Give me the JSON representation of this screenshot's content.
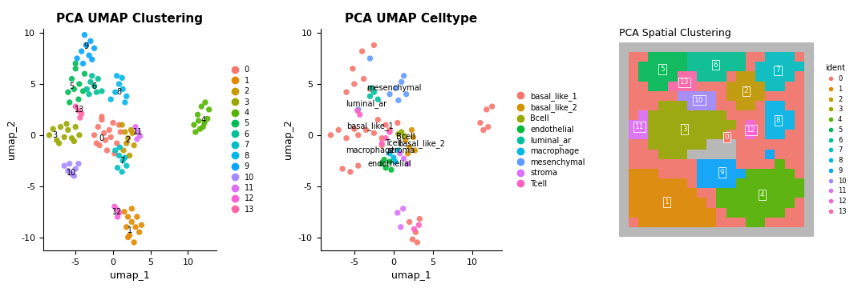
{
  "chart_data": [
    {
      "type": "scatter",
      "title": "PCA UMAP Clustering",
      "x_label": "umap_1",
      "y_label": "umap_2",
      "xlim": [
        -9.3,
        13.8
      ],
      "ylim": [
        -11.3,
        10.4
      ],
      "xticks": [
        -5,
        0,
        5,
        10
      ],
      "yticks": [
        -10,
        -5,
        0,
        5,
        10
      ],
      "legend": "right",
      "series": [
        {
          "name": "0",
          "color": "#F8766D",
          "x": [
            -2.5,
            -2,
            -1.5,
            -1,
            -0.5,
            0,
            0.5,
            1,
            -1.8,
            -0.8,
            0.2,
            -1.2,
            -0.3,
            0.8,
            -2.2,
            -1.5
          ],
          "y": [
            0,
            0.8,
            1.5,
            -0.5,
            0.5,
            1.2,
            -0.8,
            0.3,
            -1.0,
            -1.5,
            -1.8,
            0.2,
            -0.2,
            1.0,
            -0.8,
            1.8
          ]
        },
        {
          "name": "1",
          "color": "#E38900",
          "x": [
            1.5,
            2,
            2.5,
            3,
            3.5,
            2,
            2.8,
            3.2,
            1.8,
            2.5,
            3.8,
            2.2
          ],
          "y": [
            -7.5,
            -8,
            -8.5,
            -9,
            -9.5,
            -10,
            -10.5,
            -8,
            -9,
            -7.2,
            -8.8,
            -9.8
          ]
        },
        {
          "name": "2",
          "color": "#C49A00",
          "x": [
            1.2,
            1.6,
            2,
            2.4,
            2.8,
            1.4,
            2.2,
            2.6,
            1.8
          ],
          "y": [
            1.0,
            0.3,
            -0.3,
            0.5,
            -1.0,
            -1.5,
            -2.0,
            0.2,
            -0.8
          ]
        },
        {
          "name": "3",
          "color": "#99A800",
          "x": [
            -8.5,
            -8,
            -7.5,
            -7,
            -6.5,
            -6,
            -5.5,
            -5,
            -4.5,
            -7.2,
            -6.2,
            -5.2
          ],
          "y": [
            0,
            0.6,
            -0.5,
            0.8,
            -0.2,
            0.5,
            -0.3,
            0.8,
            0,
            -0.8,
            1.1,
            -0.6
          ]
        },
        {
          "name": "4",
          "color": "#53B400",
          "x": [
            10.8,
            11.3,
            11.8,
            12.3,
            12.8,
            11,
            11.6,
            12.2,
            12.6,
            11.4,
            12
          ],
          "y": [
            1,
            2,
            2.8,
            3.2,
            2.5,
            0.3,
            0.6,
            1.2,
            1.6,
            1.4,
            0.8
          ]
        },
        {
          "name": "5",
          "color": "#00BC56",
          "x": [
            -6,
            -5.5,
            -5,
            -4.5,
            -4,
            -5.8,
            -5.2,
            -4.6,
            -3.8,
            -5
          ],
          "y": [
            4.2,
            5.5,
            6.5,
            5,
            4.3,
            3.2,
            4.5,
            3.5,
            6,
            7
          ]
        },
        {
          "name": "6",
          "color": "#00C094",
          "x": [
            -3.5,
            -3,
            -2.5,
            -2,
            -1.5,
            -3.2,
            -2.2,
            -2.8
          ],
          "y": [
            4.5,
            5.2,
            4.8,
            5.5,
            4.3,
            4,
            4.2,
            5.8
          ]
        },
        {
          "name": "7",
          "color": "#00BFC4",
          "x": [
            0.3,
            0.8,
            1.3,
            1.8,
            0.6,
            1.2,
            1.6,
            0.9
          ],
          "y": [
            -1.5,
            -2.0,
            -2.5,
            -3.0,
            -3.2,
            -3.6,
            -2.2,
            -1.2
          ]
        },
        {
          "name": "8",
          "color": "#00B6EB",
          "x": [
            -0.3,
            0.3,
            0.8,
            1.3,
            1.8,
            0.5,
            1.2,
            1.6
          ],
          "y": [
            3.5,
            4.2,
            5.0,
            4.5,
            3.8,
            5.8,
            5.6,
            3.2
          ]
        },
        {
          "name": "9",
          "color": "#06A4FF",
          "x": [
            -4.8,
            -4.2,
            -3.6,
            -3,
            -2.5,
            -4,
            -3.2,
            -3.8,
            -2.8
          ],
          "y": [
            7.5,
            8.2,
            8.8,
            9.2,
            8.5,
            7,
            7.8,
            9.8,
            7.4
          ]
        },
        {
          "name": "10",
          "color": "#A58AFF",
          "x": [
            -6.5,
            -6,
            -5.5,
            -5,
            -4.6,
            -5.8,
            -5.2
          ],
          "y": [
            -3,
            -3.5,
            -3.8,
            -3.3,
            -2.8,
            -2.8,
            -4
          ]
        },
        {
          "name": "11",
          "color": "#DF70F8",
          "x": [
            3,
            3.3,
            3.6,
            3.2
          ],
          "y": [
            0.8,
            0.3,
            -0.1,
            -0.4
          ]
        },
        {
          "name": "12",
          "color": "#FB61D7",
          "x": [
            0.2,
            0.5,
            0.8,
            0.6
          ],
          "y": [
            -7,
            -7.3,
            -7.6,
            -8
          ]
        },
        {
          "name": "13",
          "color": "#FF66A8",
          "x": [
            -5,
            -4.6,
            -4.2,
            -4.4
          ],
          "y": [
            2.8,
            2.4,
            2.1,
            1.7
          ]
        }
      ],
      "annotations": [
        {
          "text": "0",
          "x": -1.5,
          "y": -0.3
        },
        {
          "text": "1",
          "x": 2.3,
          "y": -9.3
        },
        {
          "text": "2",
          "x": 2.0,
          "y": -0.5
        },
        {
          "text": "3",
          "x": -7.8,
          "y": 0.0
        },
        {
          "text": "4",
          "x": 12.0,
          "y": 1.5
        },
        {
          "text": "5",
          "x": -5.5,
          "y": 4.8
        },
        {
          "text": "6",
          "x": -2.5,
          "y": 4.8
        },
        {
          "text": "7",
          "x": 1.2,
          "y": -2.5
        },
        {
          "text": "8",
          "x": 0.8,
          "y": 4.2
        },
        {
          "text": "9",
          "x": -3.6,
          "y": 8.7
        },
        {
          "text": "10",
          "x": -5.5,
          "y": -3.7
        },
        {
          "text": "11",
          "x": 3.3,
          "y": 0.3
        },
        {
          "text": "12",
          "x": 0.6,
          "y": -7.5
        },
        {
          "text": "13",
          "x": -4.5,
          "y": 2.5
        }
      ]
    },
    {
      "type": "scatter",
      "title": "PCA UMAP Celltype",
      "x_label": "umap_1",
      "y_label": "umap_2",
      "xlim": [
        -9.3,
        13.8
      ],
      "ylim": [
        -11.3,
        10.4
      ],
      "xticks": [
        -5,
        0,
        5,
        10
      ],
      "yticks": [
        -10,
        -5,
        0,
        5,
        10
      ],
      "legend": "right",
      "series": [
        {
          "name": "basal_like_1",
          "color": "#F8766D",
          "x": [
            -8,
            -7,
            -6,
            -5,
            -4.5,
            -3.5,
            -2.5,
            -1.5,
            -0.5,
            -6.5,
            -5.5,
            -4.5,
            -5,
            -3.8,
            -3,
            -4,
            -2.5,
            11,
            11.8,
            12.5,
            12,
            11.4,
            2,
            2.8,
            3.3,
            2.4,
            3,
            -6,
            -5.2,
            -2,
            -1,
            0.5,
            -1.5
          ],
          "y": [
            0,
            0.5,
            -0.3,
            0.6,
            0,
            0.5,
            0.2,
            -0.3,
            0.5,
            -3.3,
            -3.6,
            -3,
            5,
            5.5,
            4.5,
            8.2,
            8.8,
            1.2,
            2.5,
            2.8,
            0.8,
            0.5,
            -8.5,
            -9.5,
            -8.2,
            -10.2,
            -10.5,
            4.2,
            6.5,
            1.5,
            1.0,
            1.2,
            -1
          ]
        },
        {
          "name": "basal_like_2",
          "color": "#D39200",
          "x": [
            1.5,
            2,
            2.5,
            1.8,
            2.3,
            2.7
          ],
          "y": [
            -0.5,
            -1.2,
            -0.2,
            -1.8,
            0.5,
            -1.5
          ]
        },
        {
          "name": "Bcell",
          "color": "#93AA00",
          "x": [
            1,
            1.4,
            0.6
          ],
          "y": [
            0.3,
            -0.1,
            0.1
          ]
        },
        {
          "name": "endothelial",
          "color": "#00BA38",
          "x": [
            -1.5,
            -1,
            -0.5,
            -1.2,
            -0.3
          ],
          "y": [
            -2.8,
            -3.2,
            -2.6,
            -2.4,
            -3.4
          ]
        },
        {
          "name": "luminal_ar",
          "color": "#00C19F",
          "x": [
            -3,
            -2.5,
            -2,
            -2.8
          ],
          "y": [
            3.8,
            4.2,
            3.5,
            4.6
          ]
        },
        {
          "name": "macrophage",
          "color": "#00B9E3",
          "x": [
            -0.5,
            0,
            0.5,
            0.2
          ],
          "y": [
            -1.8,
            -2.2,
            -1.5,
            -2.6
          ]
        },
        {
          "name": "mesenchymal",
          "color": "#619CFF",
          "x": [
            -0.5,
            0.3,
            1,
            1.6,
            0.6,
            1.3,
            -3,
            -4.5
          ],
          "y": [
            4,
            4.6,
            5.2,
            4.0,
            3.4,
            5.8,
            7.5,
            2.5
          ]
        },
        {
          "name": "stroma",
          "color": "#DB72FB",
          "x": [
            0.8,
            1.3,
            1.8,
            1.2,
            0.5,
            0.9
          ],
          "y": [
            -1.8,
            -2.3,
            -2.8,
            -7.2,
            -7.6,
            -9
          ]
        },
        {
          "name": "Tcell",
          "color": "#FF61C3",
          "x": [
            -1.5,
            -1,
            -0.5,
            2.6,
            3.2,
            -4.6,
            -4.3
          ],
          "y": [
            -0.8,
            -0.3,
            0.3,
            -9.2,
            -8.8,
            2.4,
            2.0
          ]
        }
      ],
      "annotations": [
        {
          "text": "mesenchymal",
          "x": 0.0,
          "y": 4.6
        },
        {
          "text": "luminal_ar",
          "x": -3.5,
          "y": 3.1
        },
        {
          "text": "basal_like_1",
          "x": -3.0,
          "y": 0.9
        },
        {
          "text": "Bcell",
          "x": 1.5,
          "y": -0.2
        },
        {
          "text": "Tcell",
          "x": 0.0,
          "y": -0.8
        },
        {
          "text": "basal_like_2",
          "x": 3.5,
          "y": -0.8
        },
        {
          "text": "macrophage",
          "x": -3.0,
          "y": -1.5
        },
        {
          "text": "stroma",
          "x": 1.0,
          "y": -1.5
        },
        {
          "text": "endothelial",
          "x": -0.5,
          "y": -2.8
        }
      ]
    },
    {
      "type": "heatmap",
      "title": "PCA Spatial Clustering",
      "legend_title": "ident",
      "legend": "right",
      "tick_labels": false,
      "series": [
        {
          "name": "0",
          "color": "#F8766D"
        },
        {
          "name": "1",
          "color": "#E38900"
        },
        {
          "name": "2",
          "color": "#C49A00"
        },
        {
          "name": "3",
          "color": "#99A800"
        },
        {
          "name": "4",
          "color": "#53B400"
        },
        {
          "name": "5",
          "color": "#00BC56"
        },
        {
          "name": "6",
          "color": "#00C094"
        },
        {
          "name": "7",
          "color": "#00BFC4"
        },
        {
          "name": "8",
          "color": "#00B6EB"
        },
        {
          "name": "9",
          "color": "#06A4FF"
        },
        {
          "name": "10",
          "color": "#A58AFF"
        },
        {
          "name": "11",
          "color": "#DF70F8"
        },
        {
          "name": "12",
          "color": "#FB61D7"
        },
        {
          "name": "13",
          "color": "#FF66A8"
        }
      ],
      "cells": [
        [
          null,
          null,
          null,
          null,
          null,
          null,
          null,
          null,
          null,
          null,
          null,
          null,
          null,
          null,
          null,
          null,
          null,
          null,
          null,
          null
        ],
        [
          null,
          0,
          0,
          5,
          5,
          5,
          5,
          6,
          6,
          6,
          6,
          6,
          6,
          0,
          0,
          7,
          7,
          7,
          0,
          null
        ],
        [
          null,
          0,
          5,
          5,
          5,
          5,
          5,
          6,
          6,
          6,
          6,
          6,
          6,
          0,
          7,
          7,
          7,
          7,
          7,
          null
        ],
        [
          null,
          0,
          5,
          5,
          5,
          5,
          13,
          13,
          6,
          6,
          6,
          0,
          2,
          2,
          7,
          7,
          7,
          7,
          0,
          null
        ],
        [
          null,
          0,
          0,
          5,
          5,
          13,
          13,
          13,
          0,
          0,
          0,
          2,
          2,
          2,
          2,
          7,
          7,
          0,
          0,
          null
        ],
        [
          null,
          0,
          0,
          0,
          0,
          0,
          10,
          10,
          10,
          10,
          0,
          2,
          2,
          2,
          2,
          0,
          0,
          0,
          0,
          null
        ],
        [
          null,
          0,
          0,
          0,
          3,
          3,
          3,
          10,
          10,
          10,
          0,
          0,
          2,
          2,
          0,
          8,
          8,
          0,
          0,
          null
        ],
        [
          null,
          0,
          11,
          3,
          3,
          3,
          3,
          3,
          3,
          3,
          3,
          0,
          0,
          0,
          0,
          8,
          8,
          8,
          0,
          null
        ],
        [
          null,
          11,
          11,
          3,
          3,
          3,
          3,
          3,
          3,
          3,
          3,
          3,
          0,
          12,
          0,
          8,
          8,
          8,
          0,
          null
        ],
        [
          null,
          11,
          11,
          3,
          3,
          3,
          3,
          3,
          3,
          3,
          3,
          0,
          0,
          12,
          0,
          8,
          8,
          0,
          0,
          null
        ],
        [
          null,
          0,
          0,
          3,
          3,
          3,
          3,
          3,
          3,
          null,
          null,
          null,
          0,
          0,
          0,
          0,
          0,
          0,
          0,
          null
        ],
        [
          null,
          0,
          0,
          0,
          3,
          3,
          3,
          null,
          null,
          null,
          null,
          null,
          0,
          0,
          0,
          9,
          0,
          0,
          0,
          null
        ],
        [
          null,
          0,
          0,
          0,
          0,
          0,
          0,
          0,
          9,
          9,
          9,
          9,
          0,
          0,
          0,
          0,
          4,
          0,
          0,
          null
        ],
        [
          null,
          1,
          1,
          1,
          0,
          0,
          0,
          0,
          9,
          9,
          9,
          9,
          9,
          4,
          4,
          4,
          4,
          4,
          0,
          null
        ],
        [
          null,
          1,
          1,
          1,
          1,
          1,
          1,
          0,
          9,
          9,
          9,
          9,
          4,
          4,
          4,
          4,
          4,
          4,
          4,
          null
        ],
        [
          null,
          1,
          1,
          1,
          1,
          1,
          1,
          1,
          0,
          0,
          4,
          4,
          4,
          4,
          4,
          4,
          4,
          4,
          4,
          null
        ],
        [
          null,
          1,
          1,
          1,
          1,
          1,
          1,
          1,
          1,
          0,
          4,
          4,
          4,
          4,
          4,
          4,
          4,
          4,
          0,
          null
        ],
        [
          null,
          1,
          1,
          1,
          1,
          1,
          1,
          1,
          1,
          1,
          0,
          4,
          4,
          4,
          4,
          4,
          4,
          0,
          0,
          null
        ],
        [
          null,
          0,
          1,
          1,
          1,
          1,
          1,
          1,
          1,
          1,
          0,
          0,
          0,
          4,
          4,
          0,
          0,
          0,
          0,
          null
        ],
        [
          null,
          null,
          null,
          null,
          null,
          null,
          null,
          null,
          null,
          null,
          null,
          null,
          null,
          null,
          null,
          null,
          null,
          null,
          null,
          null
        ]
      ]
    }
  ]
}
